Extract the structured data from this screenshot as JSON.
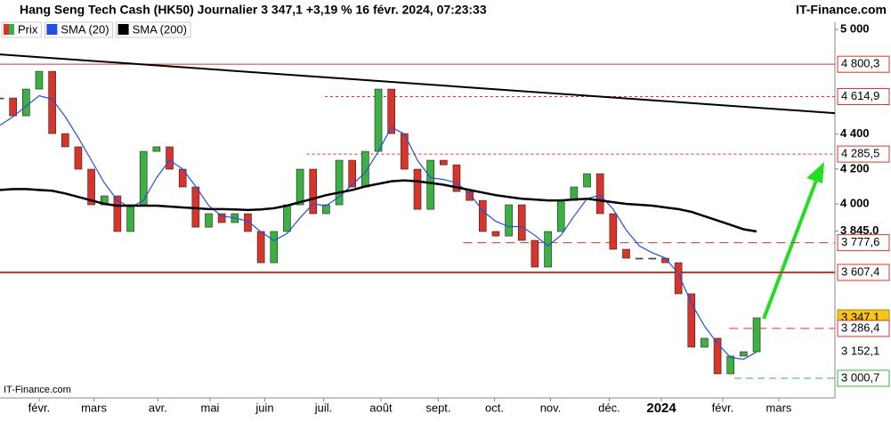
{
  "chart_data": {
    "type": "candlestick",
    "title": "Hang Seng Tech Cash (HK50) Journalier 3 347,1 +3,19 % 16 févr. 2024, 07:23:33",
    "source": "IT-Finance.com",
    "watermark": "IT-Finance.com",
    "x": [
      0,
      1,
      2,
      3,
      4,
      5,
      6,
      7,
      8,
      9,
      10,
      11,
      12,
      13,
      14,
      15,
      16,
      17,
      18,
      19,
      20,
      21,
      22,
      23,
      24,
      25,
      26,
      27,
      28,
      29,
      30,
      31,
      32,
      33,
      34,
      35,
      36,
      37,
      38,
      39,
      40,
      41,
      42,
      43,
      44,
      45,
      46,
      47,
      48,
      49,
      50,
      51,
      52,
      53,
      54,
      55,
      56,
      57,
      58
    ],
    "xlim": [
      0,
      64
    ],
    "xticks": [
      {
        "value": 3.0,
        "label": "févr."
      },
      {
        "value": 7.2,
        "label": "mars"
      },
      {
        "value": 12.1,
        "label": "avr."
      },
      {
        "value": 16.1,
        "label": "mai"
      },
      {
        "value": 20.3,
        "label": "juin"
      },
      {
        "value": 24.8,
        "label": "juil."
      },
      {
        "value": 29.2,
        "label": "août"
      },
      {
        "value": 33.6,
        "label": "sept."
      },
      {
        "value": 37.9,
        "label": "oct."
      },
      {
        "value": 42.2,
        "label": "nov."
      },
      {
        "value": 46.7,
        "label": "déc."
      },
      {
        "value": 50.7,
        "label": "2024"
      },
      {
        "value": 55.4,
        "label": "févr."
      },
      {
        "value": 59.7,
        "label": "mars"
      }
    ],
    "ylim": [
      2888,
      5041
    ],
    "yticks": [
      {
        "value": 5000,
        "label": "5 000"
      },
      {
        "value": 4400,
        "label": "4 400"
      },
      {
        "value": 4200,
        "label": "4 200"
      },
      {
        "value": 4000,
        "label": "4 000"
      },
      {
        "value": 3845,
        "label": "3 845,0"
      }
    ],
    "series": [
      {
        "name": "Prix",
        "up_color": "#3cb043",
        "down_color": "#d9342b",
        "values": [
          4607,
          4505,
          4658,
          4760,
          4403,
          4327,
          4199,
          3995,
          4046,
          3842,
          3995,
          4301,
          4327,
          4199,
          4097,
          3867,
          3944,
          3893,
          3944,
          3842,
          3663,
          3842,
          3995,
          4199,
          3944,
          3995,
          4250,
          4097,
          4301,
          4658,
          4403,
          4199,
          3969,
          4250,
          4224,
          4071,
          4020,
          3842,
          3816,
          3995,
          3791,
          3638,
          3842,
          4020,
          4097,
          4173,
          3944,
          3740,
          3689,
          3689,
          3689,
          3663,
          3485,
          3179,
          3230,
          3026,
          3128,
          3153,
          3347.1
        ]
      },
      {
        "name": "SMA (20)",
        "color": "#2050e0",
        "values": [
          4450,
          4500,
          4560,
          4620,
          4600,
          4500,
          4380,
          4250,
          4120,
          4020,
          3980,
          4020,
          4150,
          4250,
          4200,
          4100,
          3990,
          3930,
          3920,
          3900,
          3840,
          3790,
          3830,
          3920,
          4000,
          3990,
          4040,
          4110,
          4180,
          4300,
          4440,
          4400,
          4250,
          4150,
          4140,
          4120,
          4060,
          3960,
          3900,
          3870,
          3870,
          3820,
          3760,
          3820,
          3930,
          4030,
          4050,
          3970,
          3850,
          3760,
          3720,
          3690,
          3600,
          3430,
          3300,
          3200,
          3120,
          3110,
          3152.1
        ]
      },
      {
        "name": "SMA (200)",
        "color": "#000000",
        "values": [
          4080,
          4085,
          4085,
          4080,
          4075,
          4060,
          4040,
          4020,
          4000,
          3990,
          3990,
          3990,
          3990,
          3985,
          3980,
          3975,
          3970,
          3970,
          3968,
          3965,
          3968,
          3975,
          3990,
          4010,
          4030,
          4050,
          4065,
          4080,
          4100,
          4115,
          4130,
          4135,
          4130,
          4120,
          4110,
          4095,
          4080,
          4065,
          4050,
          4040,
          4030,
          4025,
          4020,
          4020,
          4025,
          4030,
          4020,
          4010,
          4000,
          3995,
          3990,
          3980,
          3970,
          3955,
          3930,
          3905,
          3880,
          3855,
          3842
        ]
      }
    ],
    "trendline": {
      "x": [
        0,
        64
      ],
      "values": [
        4857,
        4520
      ],
      "color": "#000000"
    },
    "levels": [
      {
        "value": 4800.3,
        "label": "4 800,3",
        "color": "#d9342b",
        "style": "solid",
        "x_start": 0
      },
      {
        "value": 4614.9,
        "label": "4 614,9",
        "color": "#d9342b",
        "style": "dashed",
        "x_start": 24.9
      },
      {
        "value": 4285.5,
        "label": "4 285,5",
        "color": "#d9342b",
        "style": "dashed",
        "x_start": 23.5
      },
      {
        "value": 3777.6,
        "label": "3 777,6",
        "color": "#d9342b",
        "style": "dashed",
        "x_start": 35.5
      },
      {
        "value": 3607.4,
        "label": "3 607,4",
        "color": "#d9342b",
        "style": "thick",
        "x_start": 0
      },
      {
        "value": 3347.1,
        "label": "3 347,1",
        "color": "#f5c518",
        "style": "current",
        "x_start": 64
      },
      {
        "value": 3286.4,
        "label": "3 286,4",
        "color": "#d9342b",
        "style": "dashed",
        "x_start": 55.9
      },
      {
        "value": 3152.1,
        "label": "3 152,1",
        "color": "#2050e0",
        "style": "marker",
        "x_start": 64
      },
      {
        "value": 3000.7,
        "label": "3 000,7",
        "color": "#3cb043",
        "style": "dashed",
        "x_start": 56.3
      }
    ]
  }
}
